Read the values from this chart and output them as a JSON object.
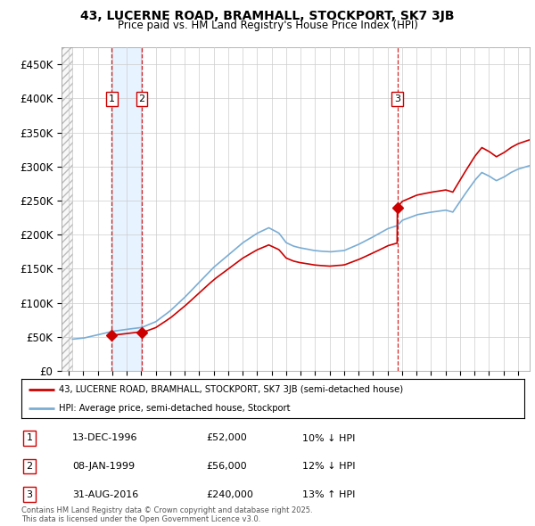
{
  "title_line1": "43, LUCERNE ROAD, BRAMHALL, STOCKPORT, SK7 3JB",
  "title_line2": "Price paid vs. HM Land Registry's House Price Index (HPI)",
  "legend_label_red": "43, LUCERNE ROAD, BRAMHALL, STOCKPORT, SK7 3JB (semi-detached house)",
  "legend_label_blue": "HPI: Average price, semi-detached house, Stockport",
  "sales": [
    {
      "date_str": "13-DEC-1996",
      "year": 1996.96,
      "price": 52000,
      "label": "1",
      "pct": "10%",
      "dir": "↓"
    },
    {
      "date_str": "08-JAN-1999",
      "year": 1999.03,
      "price": 56000,
      "label": "2",
      "pct": "12%",
      "dir": "↓"
    },
    {
      "date_str": "31-AUG-2016",
      "year": 2016.67,
      "price": 240000,
      "label": "3",
      "pct": "13%",
      "dir": "↑"
    }
  ],
  "table_rows": [
    {
      "num": "1",
      "date": "13-DEC-1996",
      "price": "£52,000",
      "note": "10% ↓ HPI"
    },
    {
      "num": "2",
      "date": "08-JAN-1999",
      "price": "£56,000",
      "note": "12% ↓ HPI"
    },
    {
      "num": "3",
      "date": "31-AUG-2016",
      "price": "£240,000",
      "note": "13% ↑ HPI"
    }
  ],
  "footer": "Contains HM Land Registry data © Crown copyright and database right 2025.\nThis data is licensed under the Open Government Licence v3.0.",
  "hpi_color": "#7aadd4",
  "price_color": "#cc0000",
  "vline_color": "#cc0000",
  "grid_color": "#cccccc",
  "bg_color": "#ffffff",
  "plot_bg": "#ffffff",
  "fill_color": "#ddeeff",
  "ylim": [
    0,
    475000
  ],
  "yticks": [
    0,
    50000,
    100000,
    150000,
    200000,
    250000,
    300000,
    350000,
    400000,
    450000
  ],
  "xlim_start": 1993.5,
  "xlim_end": 2025.8,
  "hatch_end": 1994.25
}
